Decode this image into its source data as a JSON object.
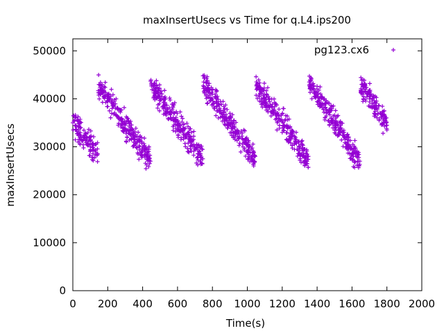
{
  "chart_data": {
    "type": "scatter",
    "title": "maxInsertUsecs vs Time for q.L4.ips200",
    "xlabel": "Time(s)",
    "ylabel": "maxInsertUsecs",
    "xlim": [
      0,
      2000
    ],
    "ylim": [
      0,
      52500
    ],
    "xticks": [
      0,
      200,
      400,
      600,
      800,
      1000,
      1200,
      1400,
      1600,
      1800,
      2000
    ],
    "yticks": [
      0,
      10000,
      20000,
      30000,
      40000,
      50000
    ],
    "grid": false,
    "legend_position": "top-right",
    "marker": "+",
    "series": [
      {
        "name": "pg123.cx6",
        "color": "#9400d3",
        "segments": [
          {
            "x": [
              0,
              145
            ],
            "y": [
              35000,
              28500
            ]
          },
          {
            "x": [
              145,
              445
            ],
            "y": [
              43000,
              27000
            ]
          },
          {
            "x": [
              445,
              745
            ],
            "y": [
              43000,
              27500
            ]
          },
          {
            "x": [
              745,
              1050
            ],
            "y": [
              43000,
              27000
            ]
          },
          {
            "x": [
              1050,
              1350
            ],
            "y": [
              43000,
              27000
            ]
          },
          {
            "x": [
              1350,
              1650
            ],
            "y": [
              43500,
              26500
            ]
          },
          {
            "x": [
              1650,
              1800
            ],
            "y": [
              43000,
              35000
            ]
          }
        ],
        "points": [
          [
            0,
            35000
          ],
          [
            20,
            33500
          ],
          [
            40,
            32500
          ],
          [
            60,
            31500
          ],
          [
            80,
            30500
          ],
          [
            100,
            30000
          ],
          [
            120,
            29500
          ],
          [
            140,
            28500
          ],
          [
            5,
            36500
          ],
          [
            30,
            31000
          ],
          [
            70,
            32800
          ],
          [
            110,
            27800
          ],
          [
            130,
            30500
          ],
          [
            150,
            43000
          ],
          [
            175,
            41500
          ],
          [
            200,
            39500
          ],
          [
            225,
            38000
          ],
          [
            250,
            36500
          ],
          [
            275,
            35500
          ],
          [
            300,
            34500
          ],
          [
            325,
            33500
          ],
          [
            350,
            32500
          ],
          [
            375,
            31500
          ],
          [
            400,
            30000
          ],
          [
            425,
            28500
          ],
          [
            445,
            27000
          ],
          [
            160,
            41000
          ],
          [
            210,
            37500
          ],
          [
            260,
            34500
          ],
          [
            310,
            36000
          ],
          [
            360,
            30500
          ],
          [
            410,
            31800
          ],
          [
            440,
            26500
          ],
          [
            450,
            43000
          ],
          [
            475,
            41500
          ],
          [
            500,
            40000
          ],
          [
            525,
            38500
          ],
          [
            550,
            37000
          ],
          [
            575,
            35500
          ],
          [
            600,
            34500
          ],
          [
            625,
            33500
          ],
          [
            650,
            32000
          ],
          [
            675,
            31000
          ],
          [
            700,
            30000
          ],
          [
            725,
            29000
          ],
          [
            745,
            27500
          ],
          [
            470,
            39800
          ],
          [
            520,
            36800
          ],
          [
            570,
            37800
          ],
          [
            620,
            31500
          ],
          [
            680,
            33000
          ],
          [
            740,
            29500
          ],
          [
            750,
            43500
          ],
          [
            775,
            41500
          ],
          [
            800,
            40000
          ],
          [
            825,
            38500
          ],
          [
            850,
            37000
          ],
          [
            875,
            36000
          ],
          [
            900,
            35000
          ],
          [
            925,
            34000
          ],
          [
            950,
            33000
          ],
          [
            975,
            31500
          ],
          [
            1000,
            30500
          ],
          [
            1025,
            29500
          ],
          [
            1045,
            28000
          ],
          [
            770,
            39000
          ],
          [
            820,
            36500
          ],
          [
            870,
            38000
          ],
          [
            930,
            31500
          ],
          [
            980,
            33500
          ],
          [
            1040,
            27000
          ],
          [
            1055,
            43000
          ],
          [
            1080,
            41500
          ],
          [
            1105,
            40000
          ],
          [
            1130,
            38500
          ],
          [
            1155,
            37500
          ],
          [
            1180,
            36000
          ],
          [
            1205,
            35000
          ],
          [
            1230,
            34000
          ],
          [
            1255,
            33000
          ],
          [
            1280,
            31500
          ],
          [
            1305,
            30500
          ],
          [
            1330,
            29500
          ],
          [
            1345,
            28000
          ],
          [
            1070,
            39500
          ],
          [
            1120,
            40500
          ],
          [
            1170,
            33500
          ],
          [
            1220,
            36500
          ],
          [
            1270,
            30500
          ],
          [
            1340,
            26500
          ],
          [
            1355,
            43500
          ],
          [
            1380,
            42000
          ],
          [
            1405,
            40500
          ],
          [
            1430,
            39000
          ],
          [
            1455,
            37500
          ],
          [
            1480,
            36000
          ],
          [
            1505,
            35000
          ],
          [
            1530,
            34000
          ],
          [
            1555,
            33000
          ],
          [
            1580,
            32000
          ],
          [
            1605,
            30500
          ],
          [
            1630,
            29000
          ],
          [
            1645,
            27000
          ],
          [
            1370,
            40000
          ],
          [
            1420,
            41000
          ],
          [
            1470,
            34500
          ],
          [
            1520,
            36500
          ],
          [
            1590,
            29500
          ],
          [
            1640,
            26000
          ],
          [
            1655,
            43000
          ],
          [
            1670,
            42000
          ],
          [
            1685,
            41000
          ],
          [
            1700,
            40000
          ],
          [
            1715,
            39000
          ],
          [
            1730,
            38500
          ],
          [
            1745,
            38000
          ],
          [
            1760,
            37000
          ],
          [
            1775,
            36500
          ],
          [
            1790,
            35500
          ],
          [
            1800,
            34500
          ],
          [
            1665,
            40000
          ],
          [
            1695,
            38500
          ],
          [
            1725,
            40500
          ],
          [
            1755,
            35500
          ],
          [
            1785,
            37500
          ],
          [
            1800,
            33500
          ]
        ]
      }
    ]
  }
}
